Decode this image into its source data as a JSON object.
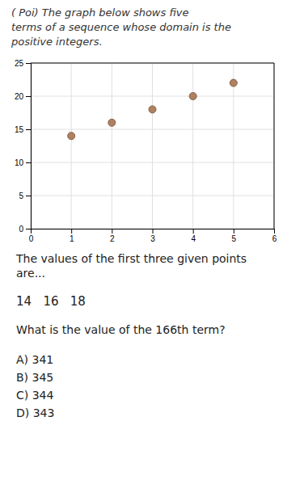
{
  "chart_data": {
    "type": "scatter",
    "title": [
      "( Poi)  The graph below shows five",
      "terms of a sequence whose domain is the",
      "positive integers."
    ],
    "x": [
      1,
      2,
      3,
      4,
      5
    ],
    "values": [
      14,
      16,
      18,
      20,
      22
    ],
    "color": "#b08060",
    "xlim": [
      0,
      6
    ],
    "ylim": [
      0,
      25
    ],
    "xticks": [
      0,
      1,
      2,
      3,
      4,
      5,
      6
    ],
    "yticks": [
      0,
      5,
      10,
      15,
      20,
      25
    ],
    "grid": true,
    "annotations": [
      "The values of the first three given points",
      "are...",
      "14   16   18",
      "What is the value of the 166th term?",
      "A) 341",
      "B) 345",
      "C) 344",
      "D) 343"
    ]
  }
}
